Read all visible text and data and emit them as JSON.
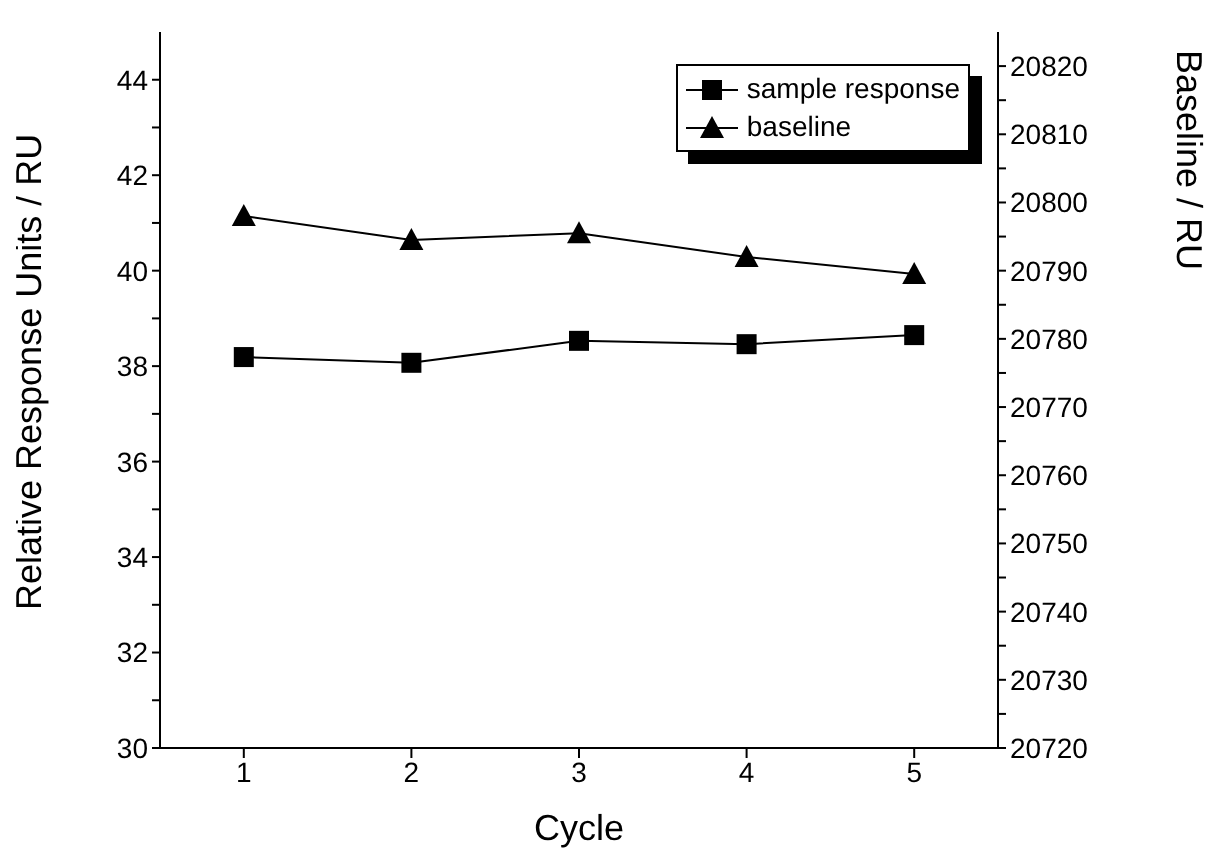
{
  "chart_data": {
    "type": "line",
    "xlabel": "Cycle",
    "ylabel": "Relative Response Units / RU",
    "y2label": "Baseline / RU",
    "x": [
      1,
      2,
      3,
      4,
      5
    ],
    "xlim": [
      0.5,
      5.5
    ],
    "xticks": [
      1,
      2,
      3,
      4,
      5
    ],
    "ylim": [
      30,
      45
    ],
    "yticks": [
      30,
      {
        "value": 31,
        "label": null
      },
      32,
      {
        "value": 33,
        "label": null
      },
      34,
      {
        "value": 35,
        "label": null
      },
      36,
      {
        "value": 37,
        "label": null
      },
      38,
      {
        "value": 39,
        "label": null
      },
      40,
      {
        "value": 41,
        "label": null
      },
      42,
      {
        "value": 43,
        "label": null
      },
      44
    ],
    "y2lim": [
      20720,
      20825
    ],
    "y2ticks": [
      20720,
      {
        "value": 20725,
        "label": null
      },
      20730,
      {
        "value": 20735,
        "label": null
      },
      20740,
      {
        "value": 20745,
        "label": null
      },
      20750,
      {
        "value": 20755,
        "label": null
      },
      20760,
      {
        "value": 20765,
        "label": null
      },
      20770,
      {
        "value": 20775,
        "label": null
      },
      20780,
      {
        "value": 20785,
        "label": null
      },
      20790,
      {
        "value": 20795,
        "label": null
      },
      20800,
      {
        "value": 20805,
        "label": null
      },
      20810,
      {
        "value": 20815,
        "label": null
      },
      20820
    ],
    "series": [
      {
        "name": "sample response",
        "color": "#000000",
        "marker": "square",
        "values": [
          38.19,
          38.07,
          38.53,
          38.46,
          38.65
        ]
      },
      {
        "name": "baseline",
        "color": "#000000",
        "marker": "triangle",
        "axis": "y2",
        "values": [
          20798,
          20794.5,
          20795.5,
          20792,
          20789.5
        ]
      }
    ],
    "legend": "top right",
    "grid": false
  }
}
